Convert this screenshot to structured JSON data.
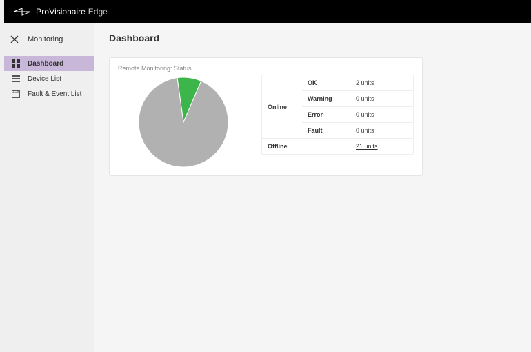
{
  "brand": {
    "pro": "Pro",
    "visionaire": "Visionaire",
    "edge": "Edge"
  },
  "subheader": {
    "title": "Monitoring"
  },
  "sidebar": {
    "items": [
      {
        "label": "Dashboard",
        "active": true
      },
      {
        "label": "Device List",
        "active": false
      },
      {
        "label": "Fault & Event List",
        "active": false
      }
    ]
  },
  "page": {
    "title": "Dashboard"
  },
  "card": {
    "title": "Remote Monitoring: Status",
    "pie": {
      "type": "pie",
      "diameter": 130,
      "background": "#ffffff",
      "slices": [
        {
          "label": "OK",
          "value": 2,
          "color": "#3cb54a"
        },
        {
          "label": "Offline",
          "value": 21,
          "color": "#b1b1b1"
        }
      ],
      "start_angle_deg": -8,
      "gap_stroke": "#ffffff",
      "gap_stroke_width": 1
    },
    "status": {
      "online_label": "Online",
      "offline_label": "Offline",
      "rows": [
        {
          "label": "OK",
          "value": "2 units",
          "link": true
        },
        {
          "label": "Warning",
          "value": "0 units",
          "link": false
        },
        {
          "label": "Error",
          "value": "0 units",
          "link": false
        },
        {
          "label": "Fault",
          "value": "0 units",
          "link": false
        }
      ],
      "offline_value": "21 units"
    }
  },
  "colors": {
    "topbar_bg": "#000000",
    "sidebar_active": "#c9b7d9",
    "page_bg": "#f5f5f5",
    "card_border": "#e5e5e5"
  }
}
